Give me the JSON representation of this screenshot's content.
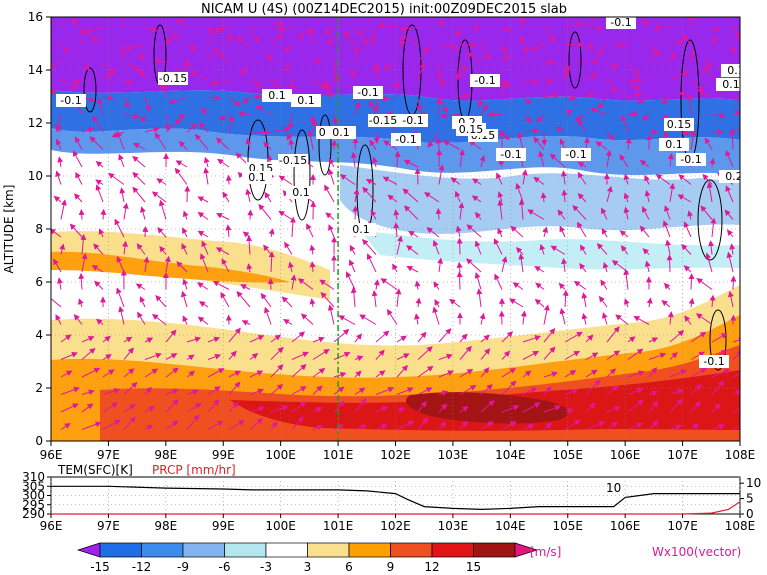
{
  "chart_data": [
    {
      "type": "heatmap",
      "title": "NICAM U (4S) (00Z14DEC2015) init:00Z09DEC2015 slab",
      "xlabel": "",
      "ylabel": "ALTITUDE [km]",
      "xlim": [
        96,
        108
      ],
      "ylim": [
        0,
        16
      ],
      "x_ticks": [
        "96E",
        "97E",
        "98E",
        "99E",
        "100E",
        "101E",
        "102E",
        "103E",
        "104E",
        "105E",
        "106E",
        "107E",
        "108E"
      ],
      "y_ticks": [
        "0",
        "2",
        "4",
        "6",
        "8",
        "10",
        "12",
        "14",
        "16"
      ],
      "grid": true,
      "marker_line_x": 101,
      "contour_labels": [
        "-0.1",
        "-0.15",
        "0.1",
        "-0.1",
        "0.1",
        "-0.1",
        "-0.15",
        "-0.1",
        "0.15",
        "0.1",
        "-0.15",
        "-0.1",
        "0.15",
        "0.1",
        "-0.1",
        "-0.1",
        "0.15",
        "0.1",
        "0.1",
        "-0.1",
        "-0.1",
        "0.15",
        "0.2",
        "0.1",
        "0.1",
        "0.15",
        "0.1",
        "0.2",
        "-0.1"
      ],
      "fields": [
        {
          "altitude_km": 15.0,
          "u_ms": -15
        },
        {
          "altitude_km": 13.0,
          "u_ms": -12
        },
        {
          "altitude_km": 12.0,
          "u_ms": -9
        },
        {
          "altitude_km": 11.0,
          "u_ms": -6
        },
        {
          "altitude_km": 10.0,
          "u_ms": 0
        },
        {
          "altitude_km": 7.0,
          "u_ms": 4
        },
        {
          "altitude_km": 6.0,
          "u_ms": 7
        },
        {
          "altitude_km": 5.0,
          "u_ms": 0
        },
        {
          "altitude_km": 3.5,
          "u_ms": 5
        },
        {
          "altitude_km": 2.0,
          "u_ms": 10
        },
        {
          "altitude_km": 1.0,
          "u_ms": 13
        }
      ]
    },
    {
      "type": "line",
      "series": [
        {
          "name": "TEM(SFC)[K]",
          "x": [
            96,
            96.5,
            97,
            98,
            99,
            99.5,
            100,
            100.5,
            101,
            101.5,
            102,
            102.2,
            102.5,
            103,
            103.5,
            104,
            104.5,
            105,
            105.5,
            105.8,
            106,
            106.5,
            107,
            107.5,
            108
          ],
          "values": [
            305,
            305,
            305,
            304,
            303.5,
            303,
            303,
            303,
            303,
            302.5,
            301,
            298,
            294,
            293,
            292.5,
            293,
            294,
            294,
            294,
            294,
            299,
            301,
            301,
            301,
            301
          ]
        },
        {
          "name": "PRCP [mm/hr]",
          "x": [
            96,
            97,
            98,
            99,
            100,
            101,
            102,
            103,
            104,
            105,
            106,
            107,
            107.5,
            107.8,
            108
          ],
          "values": [
            0,
            0,
            0,
            0,
            0,
            0,
            0,
            0,
            0,
            0,
            0,
            0,
            0.3,
            1.5,
            4
          ]
        }
      ],
      "left_ticks": [
        "290",
        "295",
        "300",
        "305",
        "310"
      ],
      "right_ticks": [
        "0",
        "5",
        "10"
      ],
      "left_range": [
        290,
        310
      ],
      "right_range": [
        0,
        12
      ],
      "annotation": "10",
      "x_ticks": [
        "96E",
        "97E",
        "98E",
        "99E",
        "100E",
        "101E",
        "102E",
        "103E",
        "104E",
        "105E",
        "106E",
        "107E",
        "108E"
      ]
    }
  ],
  "legend": {
    "labels": [
      "-15",
      "-12",
      "-9",
      "-6",
      "-3",
      "3",
      "6",
      "9",
      "12",
      "15"
    ],
    "unit": "[m/s]",
    "colors": [
      "#a020f0",
      "#1e6ee8",
      "#3c8cf0",
      "#82b4f0",
      "#b4e6f0",
      "#ffffff",
      "#fae08c",
      "#ffa000",
      "#f05020",
      "#e01414",
      "#a01414",
      "#e6147f"
    ]
  },
  "vector_note": "Wx100(vector)"
}
